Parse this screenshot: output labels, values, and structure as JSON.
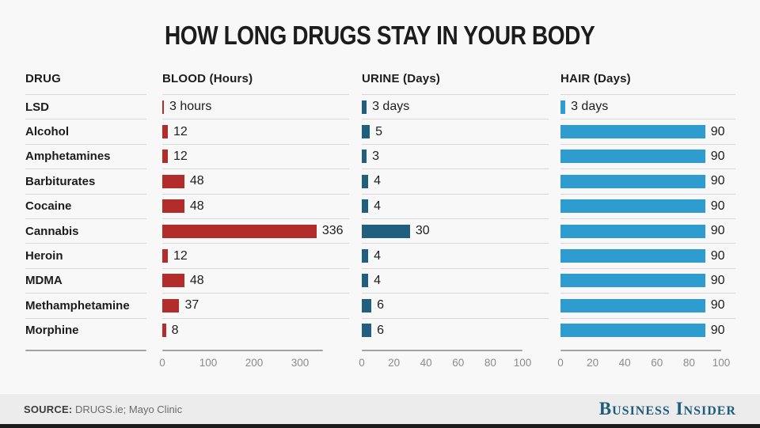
{
  "title": "HOW LONG DRUGS STAY IN YOUR BODY",
  "table": {
    "drug_header": "DRUG"
  },
  "footer": {
    "source_label": "SOURCE:",
    "source_text": "DRUGS.ie; Mayo Clinic",
    "brand": "Business Insider"
  },
  "colors": {
    "blood_bar": "#b22c2c",
    "urine_bar": "#205f7e",
    "hair_bar": "#2f9cd0",
    "brand_blue": "#1f5b7c"
  },
  "chart_data": {
    "type": "bar",
    "orientation": "horizontal",
    "title": "HOW LONG DRUGS STAY IN YOUR BODY",
    "categories": [
      "LSD",
      "Alcohol",
      "Amphetamines",
      "Barbiturates",
      "Cocaine",
      "Cannabis",
      "Heroin",
      "MDMA",
      "Methamphetamine",
      "Morphine"
    ],
    "series": [
      {
        "name": "BLOOD (Hours)",
        "unit": "hours",
        "color": "#b22c2c",
        "axis_max": 350,
        "ticks": [
          0,
          100,
          200,
          300
        ],
        "values": [
          3,
          12,
          12,
          48,
          48,
          336,
          12,
          48,
          37,
          8
        ],
        "labels": [
          "3 hours",
          "12",
          "12",
          "48",
          "48",
          "336",
          "12",
          "48",
          "37",
          "8"
        ]
      },
      {
        "name": "URINE (Days)",
        "unit": "days",
        "color": "#205f7e",
        "axis_max": 100,
        "ticks": [
          0,
          20,
          40,
          60,
          80,
          100
        ],
        "values": [
          3,
          5,
          3,
          4,
          4,
          30,
          4,
          4,
          6,
          6
        ],
        "labels": [
          "3 days",
          "5",
          "3",
          "4",
          "4",
          "30",
          "4",
          "4",
          "6",
          "6"
        ]
      },
      {
        "name": "HAIR (Days)",
        "unit": "days",
        "color": "#2f9cd0",
        "axis_max": 100,
        "ticks": [
          0,
          20,
          40,
          60,
          80,
          100
        ],
        "values": [
          3,
          90,
          90,
          90,
          90,
          90,
          90,
          90,
          90,
          90
        ],
        "labels": [
          "3 days",
          "90",
          "90",
          "90",
          "90",
          "90",
          "90",
          "90",
          "90",
          "90"
        ]
      }
    ],
    "grid": false,
    "legend": false
  }
}
